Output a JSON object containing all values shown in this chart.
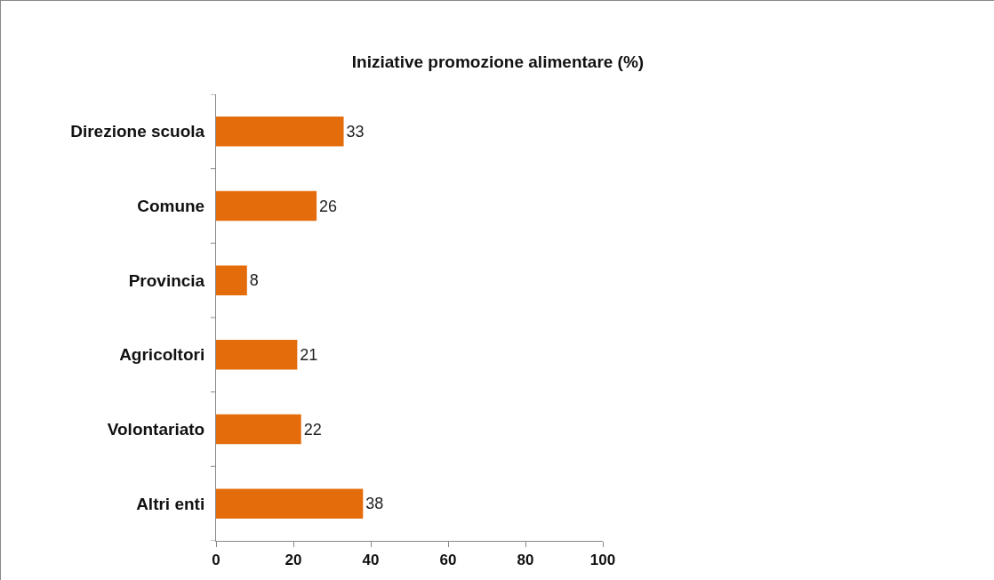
{
  "chart_data": {
    "type": "bar",
    "orientation": "horizontal",
    "title": "Iniziative promozione alimentare (%)",
    "categories": [
      "Direzione scuola",
      "Comune",
      "Provincia",
      "Agricoltori",
      "Volontariato",
      "Altri enti"
    ],
    "values": [
      33,
      26,
      8,
      21,
      22,
      38
    ],
    "color": "#e46c0a",
    "xlim": [
      0,
      100
    ],
    "xticks": [
      0,
      20,
      40,
      60,
      80,
      100
    ],
    "grid": false,
    "data_labels": true
  }
}
